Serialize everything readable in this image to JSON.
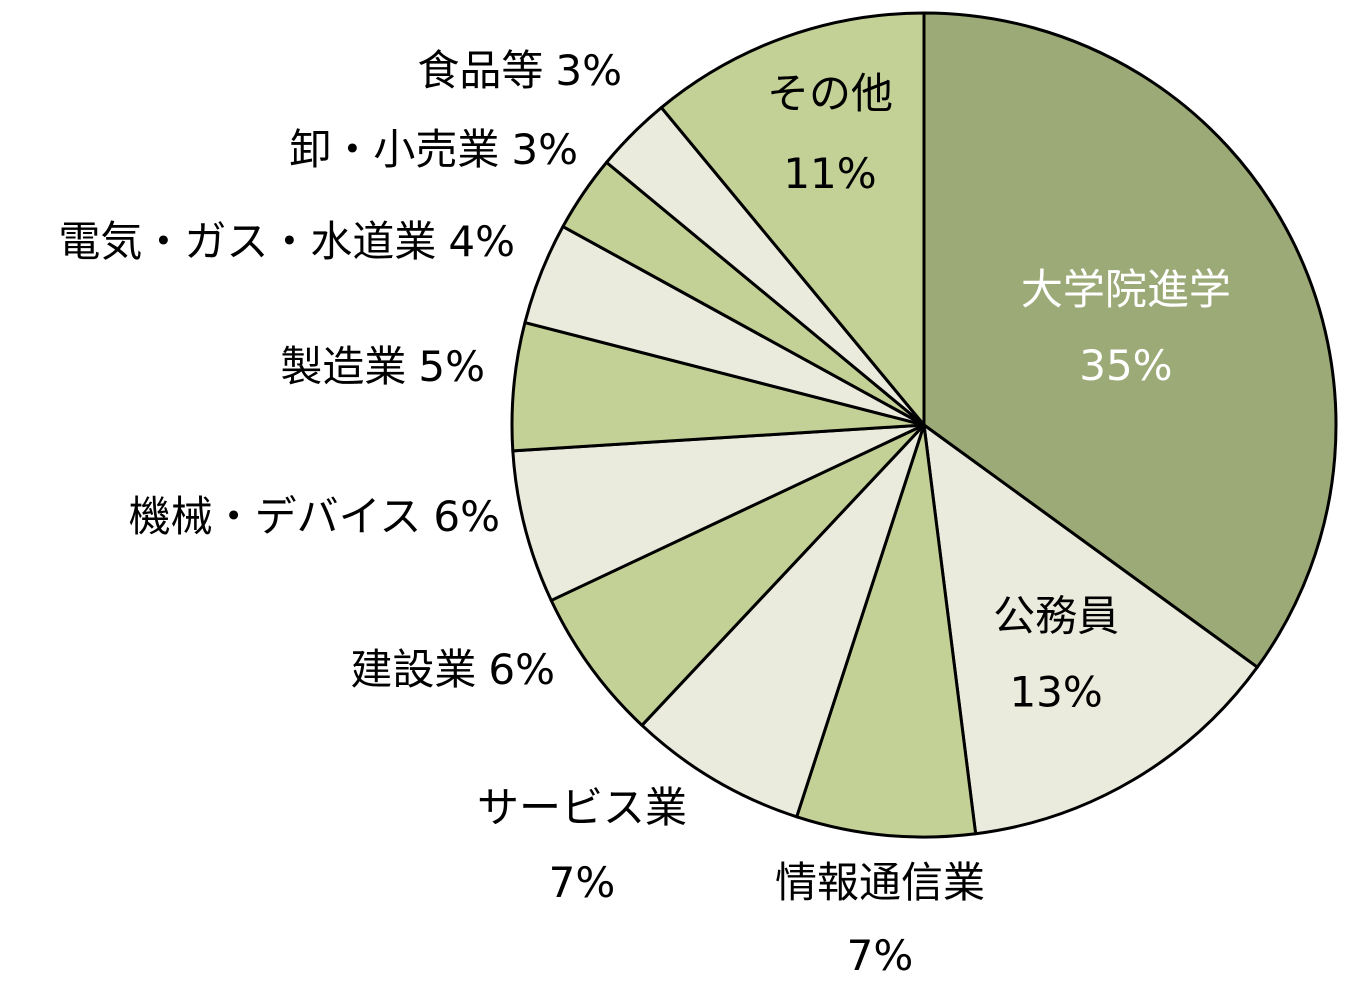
{
  "chart_data": {
    "type": "pie",
    "start": "12 o'clock",
    "direction": "clockwise",
    "slices": [
      {
        "label": "大学院進学",
        "value": 35,
        "value_text": "35%",
        "color": "#9caa77",
        "text_color": "#ffffff"
      },
      {
        "label": "公務員",
        "value": 13,
        "value_text": "13%",
        "color": "#eaebdd",
        "text_color": "#000000"
      },
      {
        "label": "情報通信業",
        "value": 7,
        "value_text": "7%",
        "color": "#c3d196",
        "text_color": "#000000"
      },
      {
        "label": "サービス業",
        "value": 7,
        "value_text": "7%",
        "color": "#eaebdd",
        "text_color": "#000000"
      },
      {
        "label": "建設業",
        "value": 6,
        "value_text": "6%",
        "color": "#c3d196",
        "text_color": "#000000"
      },
      {
        "label": "機械・デバイス",
        "value": 6,
        "value_text": "6%",
        "color": "#eaebdd",
        "text_color": "#000000"
      },
      {
        "label": "製造業",
        "value": 5,
        "value_text": "5%",
        "color": "#c3d196",
        "text_color": "#000000"
      },
      {
        "label": "電気・ガス・水道業",
        "value": 4,
        "value_text": "4%",
        "color": "#eaebdd",
        "text_color": "#000000"
      },
      {
        "label": "卸・小売業",
        "value": 3,
        "value_text": "3%",
        "color": "#c3d196",
        "text_color": "#000000"
      },
      {
        "label": "食品等",
        "value": 3,
        "value_text": "3%",
        "color": "#eaebdd",
        "text_color": "#000000"
      },
      {
        "label": "その他",
        "value": 11,
        "value_text": "11%",
        "color": "#c3d196",
        "text_color": "#000000"
      }
    ]
  }
}
